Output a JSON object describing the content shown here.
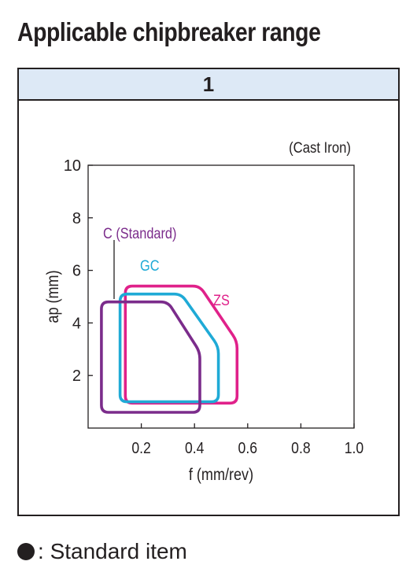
{
  "title": "Applicable chipbreaker range",
  "panel_header": "1",
  "footnote": {
    "marker_icon": "filled-circle-icon",
    "separator": ":",
    "text": "Standard item"
  },
  "chart_data": {
    "type": "area",
    "material_label": "(Cast Iron)",
    "xlabel": "f (mm/rev)",
    "ylabel": "ap (mm)",
    "xlim": [
      0,
      1.0
    ],
    "ylim": [
      0,
      10
    ],
    "xticks": [
      0.2,
      0.4,
      0.6,
      0.8,
      1.0
    ],
    "xtick_labels": [
      "0.2",
      "0.4",
      "0.6",
      "0.8",
      "1.0"
    ],
    "yticks": [
      2,
      4,
      6,
      8,
      10
    ],
    "ytick_labels": [
      "2",
      "4",
      "6",
      "8",
      "10"
    ],
    "grid": false,
    "series": [
      {
        "name": "ZS",
        "color": "#e0218a",
        "polygon": [
          [
            0.14,
            0.95
          ],
          [
            0.56,
            0.95
          ],
          [
            0.56,
            3.3
          ],
          [
            0.42,
            5.4
          ],
          [
            0.14,
            5.4
          ]
        ]
      },
      {
        "name": "GC",
        "color": "#1faad6",
        "polygon": [
          [
            0.12,
            1.0
          ],
          [
            0.49,
            1.0
          ],
          [
            0.49,
            3.1
          ],
          [
            0.35,
            5.1
          ],
          [
            0.12,
            5.1
          ]
        ]
      },
      {
        "name": "C (Standard)",
        "color": "#7b2c8b",
        "polygon": [
          [
            0.05,
            0.6
          ],
          [
            0.42,
            0.6
          ],
          [
            0.42,
            2.9
          ],
          [
            0.3,
            4.8
          ],
          [
            0.05,
            4.8
          ]
        ]
      }
    ]
  }
}
